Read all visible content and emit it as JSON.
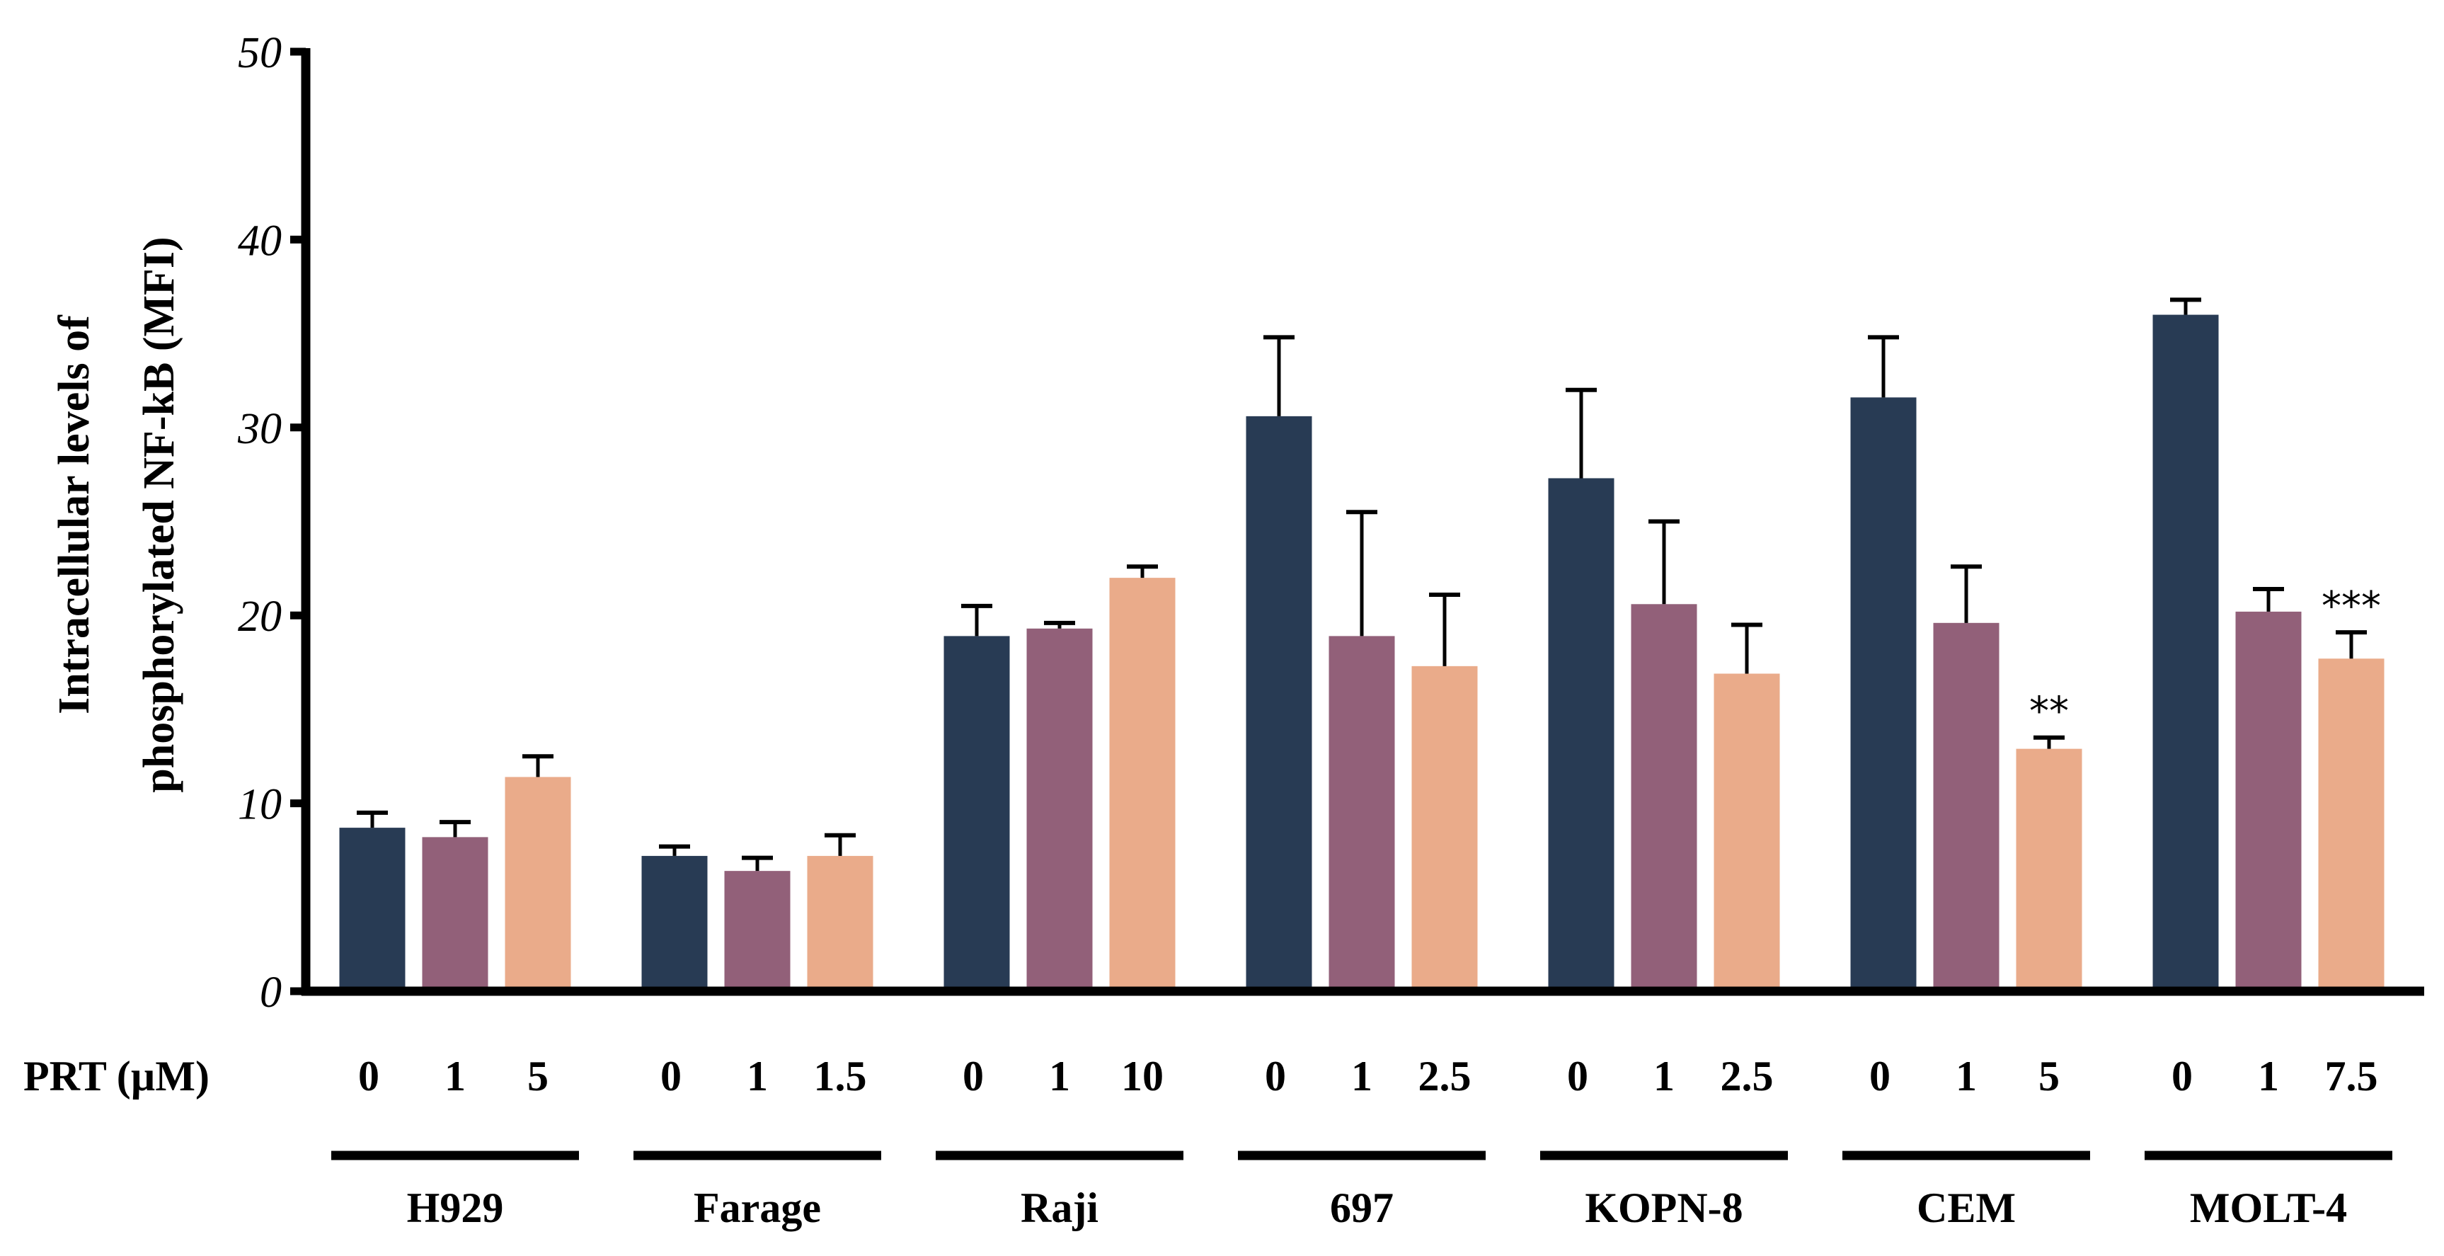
{
  "chart_data": {
    "type": "bar",
    "title": "",
    "ylabel_lines": [
      "Intracellular levels of",
      "phosphorylated NF-kB (MFI)"
    ],
    "xlabel": "PRT (µM)",
    "ylim": [
      0,
      50
    ],
    "yticks": [
      "0",
      "10",
      "20",
      "30",
      "40",
      "50"
    ],
    "grid": false,
    "colors": [
      "#283b54",
      "#926079",
      "#eaab8a"
    ],
    "groups": [
      {
        "name": "H929",
        "doses": [
          "0",
          "1",
          "5"
        ],
        "values": [
          8.7,
          8.2,
          11.4
        ],
        "errors": [
          0.8,
          0.8,
          1.1
        ],
        "sig": [
          "",
          "",
          ""
        ]
      },
      {
        "name": "Farage",
        "doses": [
          "0",
          "1",
          "1.5"
        ],
        "values": [
          7.2,
          6.4,
          7.2
        ],
        "errors": [
          0.5,
          0.7,
          1.1
        ],
        "sig": [
          "",
          "",
          ""
        ]
      },
      {
        "name": "Raji",
        "doses": [
          "0",
          "1",
          "10"
        ],
        "values": [
          18.9,
          19.3,
          22.0
        ],
        "errors": [
          1.6,
          0.3,
          0.6
        ],
        "sig": [
          "",
          "",
          ""
        ]
      },
      {
        "name": "697",
        "doses": [
          "0",
          "1",
          "2.5"
        ],
        "values": [
          30.6,
          18.9,
          17.3
        ],
        "errors": [
          4.2,
          6.6,
          3.8
        ],
        "sig": [
          "",
          "",
          ""
        ]
      },
      {
        "name": "KOPN-8",
        "doses": [
          "0",
          "1",
          "2.5"
        ],
        "values": [
          27.3,
          20.6,
          16.9
        ],
        "errors": [
          4.7,
          4.4,
          2.6
        ],
        "sig": [
          "",
          "",
          ""
        ]
      },
      {
        "name": "CEM",
        "doses": [
          "0",
          "1",
          "5"
        ],
        "values": [
          31.6,
          19.6,
          12.9
        ],
        "errors": [
          3.2,
          3.0,
          0.6
        ],
        "sig": [
          "",
          "",
          "**"
        ]
      },
      {
        "name": "MOLT-4",
        "doses": [
          "0",
          "1",
          "7.5"
        ],
        "values": [
          36.0,
          20.2,
          17.7
        ],
        "errors": [
          0.8,
          1.2,
          1.4
        ],
        "sig": [
          "",
          "",
          "***"
        ]
      }
    ]
  }
}
